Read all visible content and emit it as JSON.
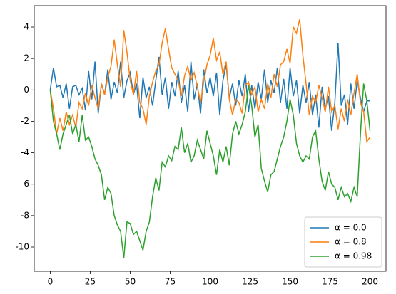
{
  "chart_data": {
    "type": "line",
    "x": [
      0,
      2,
      4,
      6,
      8,
      10,
      12,
      14,
      16,
      18,
      20,
      22,
      24,
      26,
      28,
      30,
      32,
      34,
      36,
      38,
      40,
      42,
      44,
      46,
      48,
      50,
      52,
      54,
      56,
      58,
      60,
      62,
      64,
      66,
      68,
      70,
      72,
      74,
      76,
      78,
      80,
      82,
      84,
      86,
      88,
      90,
      92,
      94,
      96,
      98,
      100,
      102,
      104,
      106,
      108,
      110,
      112,
      114,
      116,
      118,
      120,
      122,
      124,
      126,
      128,
      130,
      132,
      134,
      136,
      138,
      140,
      142,
      144,
      146,
      148,
      150,
      152,
      154,
      156,
      158,
      160,
      162,
      164,
      166,
      168,
      170,
      172,
      174,
      176,
      178,
      180,
      182,
      184,
      186,
      188,
      190,
      192,
      194,
      196,
      198,
      200
    ],
    "series": [
      {
        "name": "α = 0.0",
        "color": "#1f77b4",
        "values": [
          0,
          1.4,
          0.2,
          0.3,
          -0.5,
          0.4,
          -1.2,
          0.2,
          0.3,
          -0.3,
          0.1,
          -1.3,
          1.2,
          -0.6,
          1.8,
          -1.5,
          0.4,
          -0.3,
          1.3,
          -0.6,
          0.5,
          -0.2,
          1.8,
          -0.5,
          0.6,
          1.1,
          -0.3,
          0.4,
          -1.8,
          0.8,
          -0.5,
          0.2,
          -1.0,
          0.6,
          2.1,
          -0.3,
          0.8,
          -1.2,
          0.5,
          -0.4,
          1.2,
          -0.8,
          0.3,
          -1.4,
          1.8,
          -0.6,
          0.4,
          -1.5,
          1.3,
          -0.2,
          0.8,
          -0.4,
          1.1,
          -1.6,
          0.6,
          1.6,
          -0.5,
          0.4,
          -1.0,
          0.6,
          -0.4,
          1.0,
          -1.4,
          0.3,
          -1.2,
          0.5,
          -0.6,
          1.3,
          -0.8,
          0.6,
          -0.2,
          1.4,
          -0.8,
          0.7,
          -1.2,
          1.4,
          -0.4,
          0.6,
          -1.5,
          0.3,
          -0.8,
          0.5,
          -1.6,
          -0.3,
          -2.4,
          0.2,
          -1.2,
          -0.4,
          -2.6,
          -0.8,
          3.0,
          -1.0,
          -0.3,
          -2.2,
          0.4,
          -1.2,
          0.6,
          -0.5,
          -1.4,
          -0.7,
          -0.7
        ]
      },
      {
        "name": "α = 0.8",
        "color": "#ff7f0e",
        "values": [
          0,
          -1.2,
          -2.8,
          -1.8,
          -2.6,
          -1.4,
          -2.2,
          -1.6,
          -2.4,
          -0.8,
          -1.2,
          -0.2,
          -1.0,
          0.3,
          -0.5,
          -1.2,
          0.4,
          -0.3,
          0.8,
          1.5,
          3.2,
          1.6,
          0.2,
          3.8,
          2.4,
          0.6,
          -0.3,
          1.2,
          -0.8,
          -1.2,
          -2.2,
          -0.4,
          0.5,
          1.2,
          1.6,
          3.0,
          3.9,
          2.6,
          1.4,
          1.0,
          0.6,
          -0.4,
          0.9,
          1.5,
          0.6,
          1.1,
          0.2,
          -0.8,
          0.5,
          1.6,
          2.2,
          3.3,
          1.9,
          2.4,
          1.0,
          1.8,
          -0.6,
          -1.6,
          -0.6,
          -0.8,
          -1.5,
          0.3,
          0.5,
          -0.3,
          0.2,
          -1.4,
          -0.6,
          -1.2,
          0.4,
          -0.5,
          1.0,
          0.2,
          1.6,
          1.8,
          2.6,
          1.7,
          4.0,
          3.6,
          4.5,
          2.2,
          0.4,
          -1.6,
          -0.4,
          -0.8,
          0.3,
          -0.5,
          -1.4,
          0.2,
          -1.4,
          -1.0,
          -2.5,
          -1.2,
          -2.0,
          -0.6,
          -1.6,
          -0.2,
          1.0,
          -0.8,
          -1.4,
          -3.3,
          -3.0
        ]
      },
      {
        "name": "α = 0.98",
        "color": "#2ca02c",
        "values": [
          0,
          -2.0,
          -2.8,
          -3.8,
          -2.8,
          -2.2,
          -1.6,
          -2.8,
          -2.2,
          -3.3,
          -1.6,
          -3.2,
          -3.0,
          -3.6,
          -4.4,
          -4.8,
          -5.4,
          -7.0,
          -6.2,
          -6.6,
          -8.0,
          -8.6,
          -9.0,
          -10.7,
          -8.4,
          -8.5,
          -9.2,
          -9.0,
          -9.6,
          -10.2,
          -9.0,
          -8.4,
          -6.8,
          -5.6,
          -6.4,
          -4.6,
          -4.9,
          -4.2,
          -4.5,
          -3.6,
          -3.8,
          -2.4,
          -4.0,
          -3.4,
          -4.6,
          -4.2,
          -3.2,
          -3.8,
          -4.4,
          -2.6,
          -3.4,
          -4.2,
          -5.4,
          -3.8,
          -4.6,
          -3.6,
          -4.8,
          -2.8,
          -2.0,
          -2.8,
          -2.2,
          -1.4,
          0.3,
          -1.0,
          -3.0,
          -2.2,
          -5.0,
          -5.8,
          -6.5,
          -5.4,
          -5.2,
          -4.4,
          -3.6,
          -3.0,
          -2.0,
          -0.6,
          -1.6,
          -3.4,
          -4.2,
          -4.6,
          -4.2,
          -4.4,
          -3.0,
          -2.6,
          -4.4,
          -5.8,
          -6.4,
          -5.2,
          -6.0,
          -6.2,
          -7.0,
          -6.2,
          -6.8,
          -6.6,
          -7.1,
          -6.2,
          -6.8,
          -2.8,
          0.4,
          -0.7,
          -2.6
        ]
      }
    ],
    "xlim": [
      -10,
      210
    ],
    "ylim": [
      -11.54,
      5.36
    ],
    "xticks": [
      0,
      25,
      50,
      75,
      100,
      125,
      150,
      175,
      200
    ],
    "yticks": [
      -10,
      -8,
      -6,
      -4,
      -2,
      0,
      2,
      4
    ],
    "grid": false,
    "legend": "lower right"
  }
}
